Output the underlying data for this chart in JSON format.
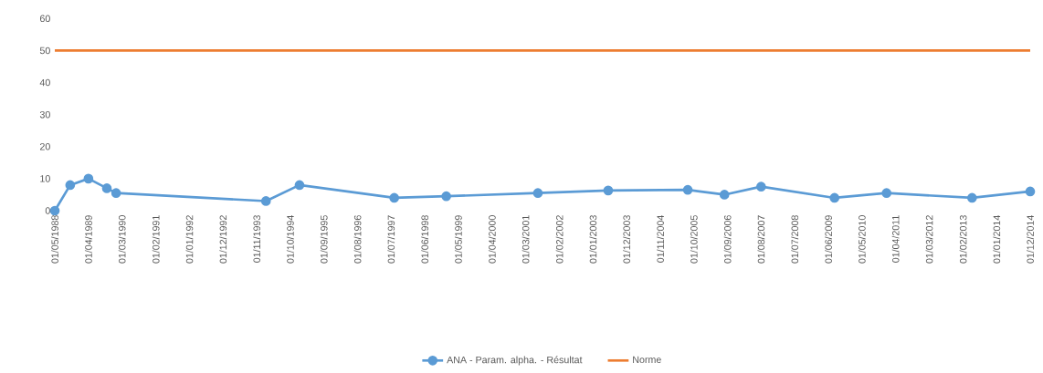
{
  "chart_data": {
    "type": "line",
    "x": [
      "1988-05",
      "1988-10",
      "1989-04",
      "1989-10",
      "1990-01",
      "1994-02",
      "1995-01",
      "1997-08",
      "1999-01",
      "2001-07",
      "2003-06",
      "2005-08",
      "2006-08",
      "2007-08",
      "2009-08",
      "2011-01",
      "2013-05",
      "2014-12"
    ],
    "series": [
      {
        "name": "ANA - Param. alpha. - Résultat",
        "color": "#5b9bd5",
        "marker": "circle",
        "values": [
          0,
          8,
          10,
          7,
          5.5,
          3,
          8,
          4,
          4.5,
          5.5,
          6.3,
          6.5,
          5,
          7.5,
          4,
          5.5,
          4,
          6
        ]
      },
      {
        "name": "Norme",
        "color": "#ed7d31",
        "marker": "none",
        "x": [
          "1988-05",
          "2014-12"
        ],
        "values": [
          50,
          50
        ]
      }
    ],
    "xlim": [
      "1988-05",
      "2014-12"
    ],
    "xticks": [
      {
        "value": "1988-05-01",
        "label": "01/05/1988"
      },
      {
        "value": "1989-04-01",
        "label": "01/04/1989"
      },
      {
        "value": "1990-03-01",
        "label": "01/03/1990"
      },
      {
        "value": "1991-02-01",
        "label": "01/02/1991"
      },
      {
        "value": "1992-01-01",
        "label": "01/01/1992"
      },
      {
        "value": "1992-12-01",
        "label": "01/12/1992"
      },
      {
        "value": "1993-11-01",
        "label": "01/11/1993"
      },
      {
        "value": "1994-10-01",
        "label": "01/10/1994"
      },
      {
        "value": "1995-09-01",
        "label": "01/09/1995"
      },
      {
        "value": "1996-08-01",
        "label": "01/08/1996"
      },
      {
        "value": "1997-07-01",
        "label": "01/07/1997"
      },
      {
        "value": "1998-06-01",
        "label": "01/06/1998"
      },
      {
        "value": "1999-05-01",
        "label": "01/05/1999"
      },
      {
        "value": "2000-04-01",
        "label": "01/04/2000"
      },
      {
        "value": "2001-03-01",
        "label": "01/03/2001"
      },
      {
        "value": "2002-02-01",
        "label": "01/02/2002"
      },
      {
        "value": "2003-01-01",
        "label": "01/01/2003"
      },
      {
        "value": "2003-12-01",
        "label": "01/12/2003"
      },
      {
        "value": "2004-11-01",
        "label": "01/11/2004"
      },
      {
        "value": "2005-10-01",
        "label": "01/10/2005"
      },
      {
        "value": "2006-09-01",
        "label": "01/09/2006"
      },
      {
        "value": "2007-08-01",
        "label": "01/08/2007"
      },
      {
        "value": "2008-07-01",
        "label": "01/07/2008"
      },
      {
        "value": "2009-06-01",
        "label": "01/06/2009"
      },
      {
        "value": "2010-05-01",
        "label": "01/05/2010"
      },
      {
        "value": "2011-04-01",
        "label": "01/04/2011"
      },
      {
        "value": "2012-03-01",
        "label": "01/03/2012"
      },
      {
        "value": "2013-02-01",
        "label": "01/02/2013"
      },
      {
        "value": "2014-01-01",
        "label": "01/01/2014"
      },
      {
        "value": "2014-12-01",
        "label": "01/12/2014"
      }
    ],
    "ylim": [
      0,
      60
    ],
    "yticks": [
      0,
      10,
      20,
      30,
      40,
      50,
      60
    ],
    "grid": false,
    "legend": "bottom"
  }
}
